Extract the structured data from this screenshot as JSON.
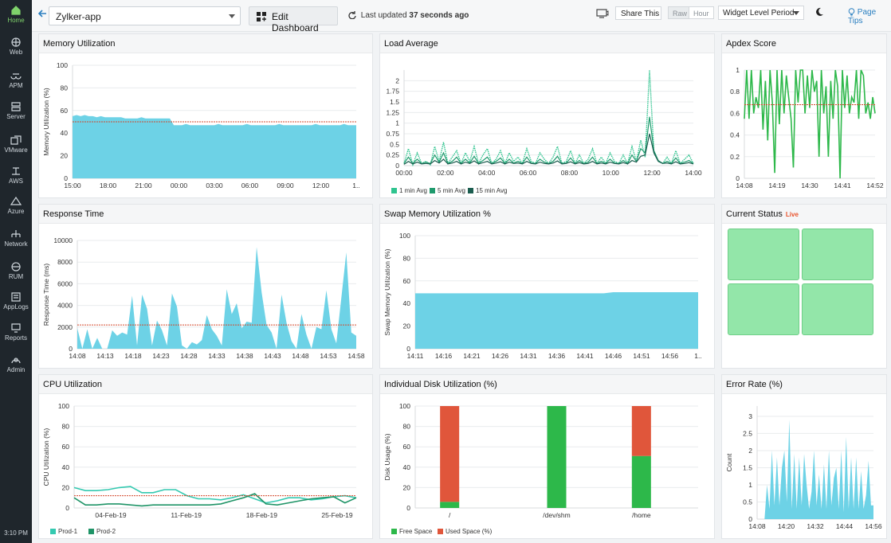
{
  "sidebar": {
    "items": [
      {
        "label": "Home",
        "icon": "home-icon"
      },
      {
        "label": "Web",
        "icon": "globe-icon"
      },
      {
        "label": "APM",
        "icon": "binoculars-icon"
      },
      {
        "label": "Server",
        "icon": "server-icon"
      },
      {
        "label": "VMware",
        "icon": "vmware-icon"
      },
      {
        "label": "AWS",
        "icon": "aws-icon"
      },
      {
        "label": "Azure",
        "icon": "azure-icon"
      },
      {
        "label": "Network",
        "icon": "network-icon"
      },
      {
        "label": "RUM",
        "icon": "rum-icon"
      },
      {
        "label": "AppLogs",
        "icon": "applogs-icon"
      },
      {
        "label": "Reports",
        "icon": "reports-icon"
      },
      {
        "label": "Admin",
        "icon": "admin-icon"
      }
    ],
    "time": "3:10 PM",
    "active_color": "#7fd36b"
  },
  "topbar": {
    "monitor": "Zylker-app",
    "edit_label": "Edit Dashboard",
    "updated_prefix": "Last updated",
    "updated_value": "37 seconds ago",
    "share_label": "Share This",
    "raw_label": "Raw",
    "hour_label": "Hour",
    "period_label": "Widget Level Period",
    "tips_label": "Page Tips"
  },
  "colors": {
    "area": "#6dd2e6",
    "threshold": "#d2482b",
    "green": "#2db84a",
    "teal": "#1aa28c",
    "red": "#e0563b",
    "status_green": "#93e6a9"
  },
  "widgets": {
    "memory": {
      "title": "Memory Utilization"
    },
    "load": {
      "title": "Load Average"
    },
    "apdex": {
      "title": "Apdex Score"
    },
    "response": {
      "title": "Response Time"
    },
    "swap": {
      "title": "Swap Memory Utilization %"
    },
    "status": {
      "title": "Current Status",
      "badge": "Live"
    },
    "cpu": {
      "title": "CPU Utilization"
    },
    "disk": {
      "title": "Individual Disk Utilization (%)"
    },
    "error": {
      "title": "Error Rate (%)"
    }
  },
  "chart_data": [
    {
      "id": "memory",
      "type": "area",
      "ylabel": "Memory Utilization (%)",
      "xlabel": "",
      "ylim": [
        0,
        100
      ],
      "yticks": [
        0,
        20,
        40,
        60,
        80,
        100
      ],
      "xticks": [
        "15:00",
        "18:00",
        "21:00",
        "00:00",
        "03:00",
        "06:00",
        "09:00",
        "12:00",
        "1.."
      ],
      "threshold": 50,
      "series": [
        {
          "x": [
            0,
            1,
            2,
            3,
            4,
            5,
            6,
            7,
            8,
            9,
            10,
            11,
            12,
            13,
            14,
            15,
            16,
            17,
            18,
            19,
            20,
            21,
            22,
            23,
            24,
            25,
            26,
            27,
            28,
            29,
            30,
            31,
            32,
            33,
            34,
            35,
            36,
            37,
            38,
            39,
            40,
            41,
            42,
            43,
            44,
            45,
            46,
            47,
            48,
            49,
            50,
            51,
            52,
            53,
            54,
            55,
            56,
            57,
            58,
            59,
            60,
            61,
            62,
            63,
            64,
            65,
            66,
            67,
            68,
            69,
            70
          ],
          "values": [
            55,
            56,
            55,
            56,
            55,
            55,
            54,
            55,
            54,
            54,
            54,
            54,
            54,
            53,
            53,
            53,
            53,
            54,
            53,
            53,
            53,
            53,
            53,
            53,
            53,
            47,
            47,
            47,
            48,
            47,
            47,
            47,
            47,
            47,
            47,
            47,
            48,
            47,
            47,
            47,
            47,
            47,
            47,
            48,
            47,
            47,
            47,
            47,
            47,
            47,
            47,
            48,
            47,
            47,
            47,
            47,
            47,
            47,
            47,
            47,
            48,
            47,
            47,
            47,
            47,
            47,
            47,
            48,
            47,
            47,
            47
          ]
        }
      ]
    },
    {
      "id": "load",
      "type": "line",
      "ylim": [
        0,
        2.25
      ],
      "yticks": [
        0,
        0.25,
        0.5,
        0.75,
        1,
        1.25,
        1.5,
        1.75,
        2
      ],
      "xticks": [
        "00:00",
        "02:00",
        "04:00",
        "06:00",
        "08:00",
        "10:00",
        "12:00",
        "14:00"
      ],
      "series": [
        {
          "name": "1 min Avg",
          "values": [
            0.05,
            0.4,
            0.02,
            0.3,
            0.05,
            0.1,
            0.02,
            0.45,
            0.1,
            0.55,
            0.05,
            0.2,
            0.35,
            0.05,
            0.3,
            0.1,
            0.45,
            0.05,
            0.25,
            0.4,
            0.05,
            0.15,
            0.35,
            0.05,
            0.3,
            0.1,
            0.2,
            0.05,
            0.4,
            0.1,
            0.05,
            0.3,
            0.15,
            0.05,
            0.2,
            0.45,
            0.05,
            0.1,
            0.35,
            0.05,
            0.25,
            0.05,
            0.15,
            0.4,
            0.05,
            0.2,
            0.05,
            0.3,
            0.1,
            0.05,
            0.25,
            0.05,
            0.45,
            0.1,
            0.6,
            0.2,
            2.25,
            0.3,
            0.1,
            0.05,
            0.2,
            0.05,
            0.35,
            0.05,
            0.15,
            0.25,
            0.05
          ]
        },
        {
          "name": "5 min Avg",
          "values": [
            0.05,
            0.2,
            0.05,
            0.15,
            0.05,
            0.08,
            0.05,
            0.25,
            0.08,
            0.3,
            0.05,
            0.1,
            0.2,
            0.05,
            0.15,
            0.06,
            0.22,
            0.05,
            0.12,
            0.2,
            0.05,
            0.1,
            0.18,
            0.05,
            0.15,
            0.06,
            0.1,
            0.05,
            0.2,
            0.06,
            0.05,
            0.15,
            0.08,
            0.05,
            0.1,
            0.22,
            0.05,
            0.06,
            0.18,
            0.05,
            0.12,
            0.05,
            0.08,
            0.2,
            0.05,
            0.1,
            0.05,
            0.15,
            0.06,
            0.05,
            0.12,
            0.05,
            0.25,
            0.1,
            0.4,
            0.3,
            1.15,
            0.35,
            0.12,
            0.05,
            0.1,
            0.05,
            0.18,
            0.05,
            0.08,
            0.12,
            0.05
          ]
        },
        {
          "name": "15 min Avg",
          "values": [
            0.03,
            0.1,
            0.04,
            0.08,
            0.04,
            0.05,
            0.04,
            0.12,
            0.06,
            0.15,
            0.04,
            0.06,
            0.1,
            0.04,
            0.08,
            0.05,
            0.11,
            0.04,
            0.07,
            0.1,
            0.04,
            0.06,
            0.09,
            0.04,
            0.08,
            0.05,
            0.06,
            0.04,
            0.1,
            0.05,
            0.04,
            0.08,
            0.05,
            0.04,
            0.06,
            0.11,
            0.04,
            0.05,
            0.09,
            0.04,
            0.07,
            0.04,
            0.05,
            0.1,
            0.04,
            0.06,
            0.04,
            0.08,
            0.05,
            0.04,
            0.07,
            0.04,
            0.12,
            0.08,
            0.22,
            0.25,
            0.75,
            0.3,
            0.1,
            0.05,
            0.06,
            0.04,
            0.09,
            0.04,
            0.05,
            0.07,
            0.04
          ]
        }
      ]
    },
    {
      "id": "apdex",
      "type": "line",
      "ylim": [
        0,
        1
      ],
      "yticks": [
        0,
        0.2,
        0.4,
        0.6,
        0.8,
        1
      ],
      "xticks": [
        "14:08",
        "14:19",
        "14:30",
        "14:41",
        "14:52"
      ],
      "threshold": 0.68,
      "series": [
        {
          "values": [
            0.55,
            1,
            0.55,
            1,
            0.6,
            0.75,
            0.65,
            1,
            0.45,
            0.9,
            0.35,
            1,
            0.7,
            0.05,
            1,
            0.5,
            1,
            0.6,
            0.95,
            0.75,
            0.55,
            0.1,
            1,
            0.7,
            1,
            1,
            0.6,
            0.95,
            0.65,
            1,
            0.8,
            0.9,
            0.2,
            1,
            0.6,
            0.85,
            0.2,
            0.9,
            0.55,
            1,
            0.85,
            0,
            1,
            0.65,
            0.95,
            0.6,
            0.75,
            0.7,
            1,
            0.55,
            1,
            0.95,
            0.6,
            0.7,
            0.55,
            0.75,
            0.6
          ]
        }
      ]
    },
    {
      "id": "response",
      "type": "area",
      "ylabel": "Response Time (ms)",
      "ylim": [
        0,
        10000
      ],
      "yticks": [
        0,
        2000,
        4000,
        6000,
        8000,
        10000
      ],
      "xticks": [
        "14:08",
        "14:13",
        "14:18",
        "14:23",
        "14:28",
        "14:33",
        "14:38",
        "14:43",
        "14:48",
        "14:53",
        "14:58"
      ],
      "threshold": 2200,
      "series": [
        {
          "values": [
            1900,
            0,
            1800,
            0,
            1000,
            0,
            0,
            1700,
            1200,
            1500,
            1300,
            4900,
            300,
            5000,
            3700,
            300,
            2600,
            1700,
            300,
            5100,
            3900,
            300,
            0,
            600,
            400,
            800,
            3100,
            1800,
            1200,
            300,
            5500,
            3200,
            4200,
            1900,
            2500,
            2400,
            9400,
            5200,
            2200,
            1500,
            0,
            5000,
            2400,
            700,
            0,
            3200,
            1300,
            0,
            2000,
            1800,
            5400,
            1800,
            500,
            4700,
            8900,
            1500,
            1200
          ]
        }
      ]
    },
    {
      "id": "swap",
      "type": "area",
      "ylabel": "Swap Memory Utilization (%)",
      "ylim": [
        0,
        100
      ],
      "yticks": [
        0,
        20,
        40,
        60,
        80,
        100
      ],
      "xticks": [
        "14:11",
        "14:16",
        "14:21",
        "14:26",
        "14:31",
        "14:36",
        "14:41",
        "14:46",
        "14:51",
        "14:56",
        "1.."
      ],
      "series": [
        {
          "values": [
            49,
            49,
            49,
            49,
            49,
            49,
            49,
            49,
            49,
            49,
            49,
            49,
            49,
            49,
            49,
            49,
            49,
            49,
            49,
            49,
            49,
            50,
            50,
            50,
            50,
            50,
            50,
            50,
            50,
            50,
            50
          ]
        }
      ]
    },
    {
      "id": "cpu",
      "type": "line",
      "ylabel": "CPU Utilization (%)",
      "ylim": [
        0,
        100
      ],
      "yticks": [
        0,
        20,
        40,
        60,
        80,
        100
      ],
      "xticks": [
        "04-Feb-19",
        "11-Feb-19",
        "18-Feb-19",
        "25-Feb-19"
      ],
      "threshold": 12,
      "series": [
        {
          "name": "Prod-1",
          "values": [
            20,
            17,
            17,
            18,
            20,
            21,
            15,
            15,
            18,
            18,
            12,
            9,
            9,
            8,
            10,
            13,
            9,
            5,
            7,
            10,
            10,
            8,
            9,
            11,
            12,
            10
          ]
        },
        {
          "name": "Prod-2",
          "values": [
            10,
            3,
            3,
            4,
            4,
            3,
            2,
            3,
            3,
            3,
            3,
            3,
            3,
            4,
            7,
            10,
            14,
            4,
            3,
            5,
            7,
            9,
            10,
            11,
            5,
            10
          ]
        }
      ]
    },
    {
      "id": "disk",
      "type": "bar",
      "ylabel": "Disk Usage (%)",
      "ylim": [
        0,
        100
      ],
      "yticks": [
        0,
        20,
        40,
        60,
        80,
        100
      ],
      "categories": [
        "/",
        "/dev/shm",
        "/home"
      ],
      "series": [
        {
          "name": "Free Space",
          "values": [
            6,
            100,
            51
          ]
        },
        {
          "name": "Used Space (%)",
          "values": [
            94,
            0,
            49
          ]
        }
      ]
    },
    {
      "id": "error",
      "type": "area",
      "ylabel": "Count",
      "ylim": [
        0,
        3.3
      ],
      "yticks": [
        0,
        0.5,
        1,
        1.5,
        2,
        2.5,
        3
      ],
      "xticks": [
        "14:08",
        "14:20",
        "14:32",
        "14:44",
        "14:56"
      ],
      "series": [
        {
          "values": [
            0,
            0,
            0,
            0,
            1,
            0.3,
            2,
            0.4,
            1.8,
            0.4,
            1.5,
            2,
            0.5,
            2.9,
            0.3,
            1.9,
            0.3,
            1.8,
            0.4,
            1.9,
            1,
            0.3,
            0.8,
            2,
            0.4,
            1.3,
            0.3,
            1.6,
            0.3,
            2,
            0.4,
            1.2,
            1.5,
            0.3,
            2,
            0.2,
            2.4,
            0.3,
            1.8,
            0.3,
            1.8,
            0.3,
            1.4,
            0.3,
            0.7,
            1.7,
            0.4,
            0.4
          ]
        }
      ]
    }
  ]
}
